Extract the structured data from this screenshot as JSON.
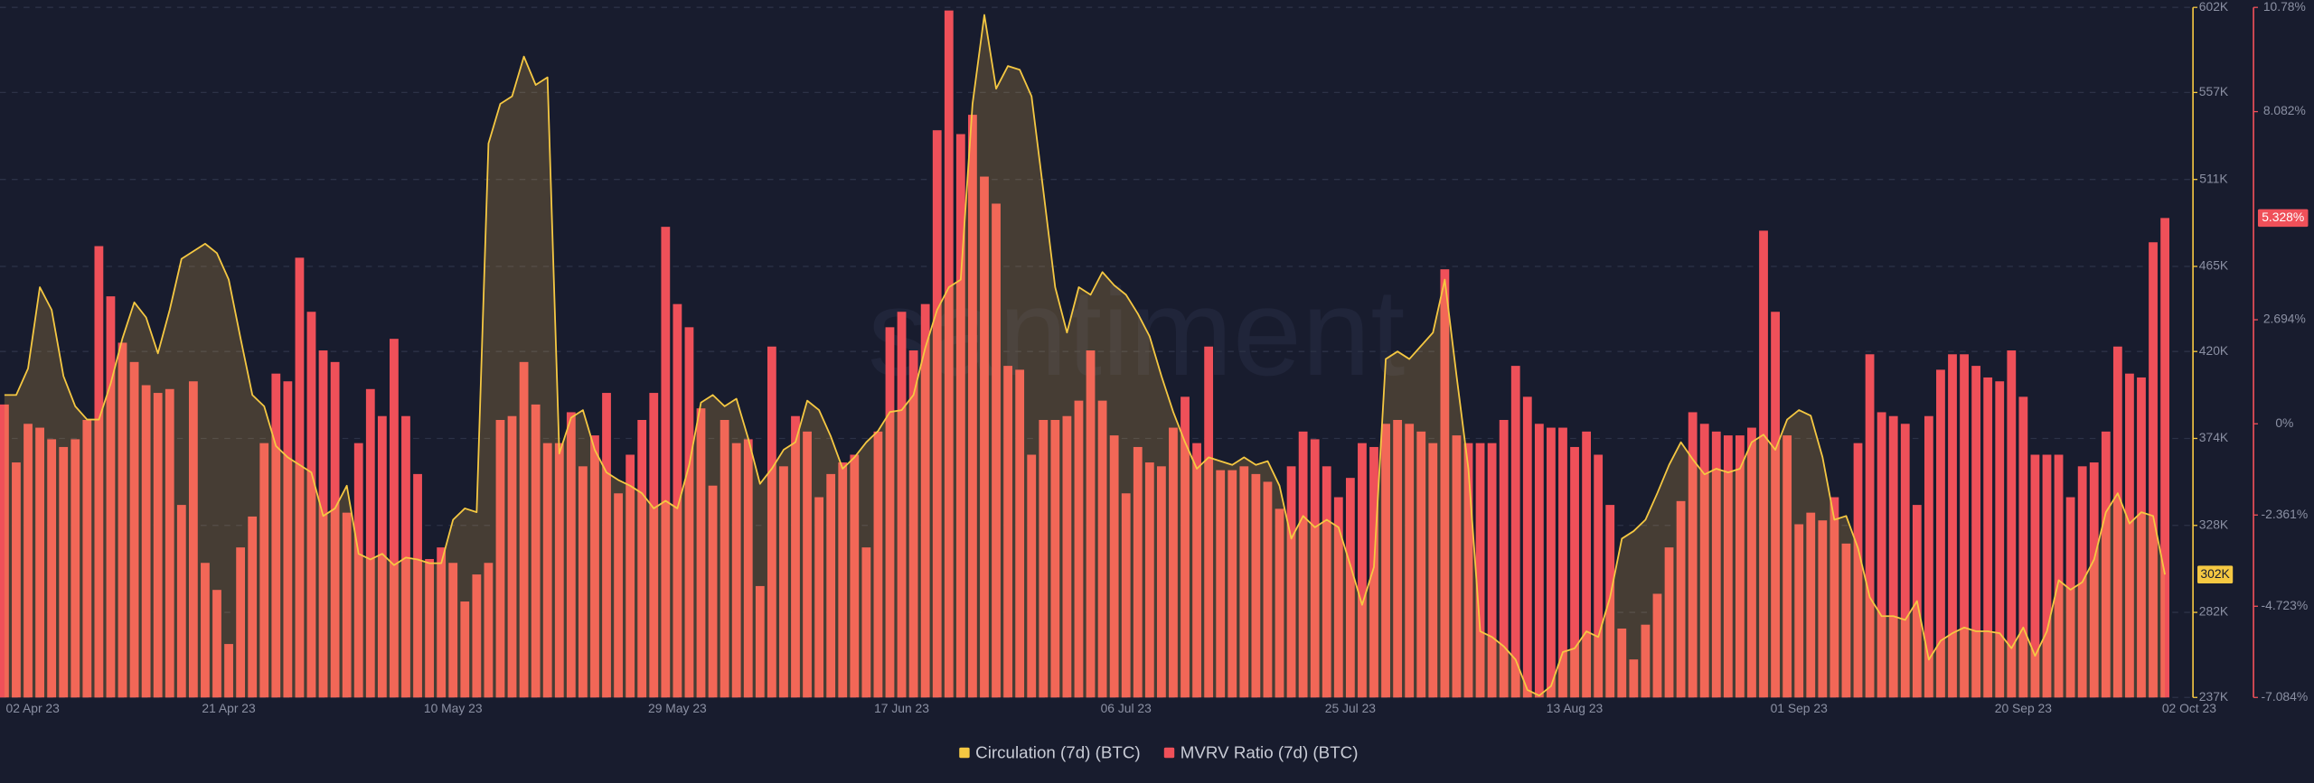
{
  "chart_data": {
    "type": "combo",
    "watermark": "santiment",
    "categories": [
      "02 Apr 23",
      null,
      null,
      null,
      null,
      null,
      null,
      null,
      null,
      null,
      null,
      null,
      null,
      null,
      null,
      null,
      null,
      null,
      null,
      "21 Apr 23",
      null,
      null,
      null,
      null,
      null,
      null,
      null,
      null,
      null,
      null,
      null,
      null,
      null,
      null,
      null,
      null,
      null,
      null,
      "10 May 23",
      null,
      null,
      null,
      null,
      null,
      null,
      null,
      null,
      null,
      null,
      null,
      null,
      null,
      null,
      null,
      null,
      null,
      null,
      "29 May 23",
      null,
      null,
      null,
      null,
      null,
      null,
      null,
      null,
      null,
      null,
      null,
      null,
      null,
      null,
      null,
      null,
      null,
      null,
      "17 Jun 23",
      null,
      null,
      null,
      null,
      null,
      null,
      null,
      null,
      null,
      null,
      null,
      null,
      null,
      null,
      null,
      null,
      null,
      null,
      "06 Jul 23",
      null,
      null,
      null,
      null,
      null,
      null,
      null,
      null,
      null,
      null,
      null,
      null,
      null,
      null,
      null,
      null,
      null,
      null,
      "25 Jul 23",
      null,
      null,
      null,
      null,
      null,
      null,
      null,
      null,
      null,
      null,
      null,
      null,
      null,
      null,
      null,
      null,
      null,
      null,
      "13 Aug 23",
      null,
      null,
      null,
      null,
      null,
      null,
      null,
      null,
      null,
      null,
      null,
      null,
      null,
      null,
      null,
      null,
      null,
      null,
      "01 Sep 23",
      null,
      null,
      null,
      null,
      null,
      null,
      null,
      null,
      null,
      null,
      null,
      null,
      null,
      null,
      null,
      null,
      null,
      null,
      "20 Sep 23",
      null,
      null,
      null,
      null,
      null,
      null,
      null,
      null,
      null,
      null,
      null,
      "02 Oct 23"
    ],
    "ylim": [
      237000,
      602000
    ],
    "yticks": [
      {
        "value": 237000,
        "label": "237K"
      },
      {
        "value": 282000,
        "label": "282K"
      },
      {
        "value": 328000,
        "label": "328K"
      },
      {
        "value": 374000,
        "label": "374K"
      },
      {
        "value": 420000,
        "label": "420K"
      },
      {
        "value": 465000,
        "label": "465K"
      },
      {
        "value": 511000,
        "label": "511K"
      },
      {
        "value": 557000,
        "label": "557K"
      },
      {
        "value": 602000,
        "label": "602K"
      }
    ],
    "y2lim": [
      -7.084,
      10.78
    ],
    "y2ticks": [
      {
        "value": -7.084,
        "label": "-7.084%"
      },
      {
        "value": -4.723,
        "label": "-4.723%"
      },
      {
        "value": -2.361,
        "label": "-2.361%"
      },
      {
        "value": 0,
        "label": "0%"
      },
      {
        "value": 2.694,
        "label": "2.694%"
      },
      {
        "value": 8.082,
        "label": "8.082%"
      },
      {
        "value": 10.78,
        "label": "10.78%"
      }
    ],
    "grid": true,
    "series": [
      {
        "name": "Circulation (7d) (BTC)",
        "color": "#f5c842",
        "type": "area",
        "last_label": "302K",
        "values": [
          397000,
          397000,
          411000,
          454000,
          442000,
          407000,
          391000,
          384000,
          384000,
          403000,
          427000,
          446000,
          438000,
          419000,
          442000,
          469000,
          473000,
          477000,
          472000,
          458000,
          427000,
          397000,
          391000,
          370000,
          364000,
          360000,
          356000,
          333000,
          337000,
          349000,
          313000,
          310000,
          313000,
          307000,
          311000,
          310000,
          308000,
          308000,
          331000,
          337000,
          335000,
          530000,
          551000,
          555000,
          576000,
          561000,
          565000,
          366000,
          385000,
          389000,
          368000,
          356000,
          352000,
          349000,
          345000,
          337000,
          341000,
          337000,
          360000,
          393000,
          397000,
          391000,
          395000,
          374000,
          350000,
          358000,
          368000,
          372000,
          394000,
          389000,
          375000,
          358000,
          364000,
          372000,
          378000,
          388000,
          389000,
          397000,
          422000,
          442000,
          454000,
          458000,
          551000,
          598000,
          559000,
          571000,
          569000,
          555000,
          505000,
          454000,
          430000,
          454000,
          450000,
          462000,
          455000,
          450000,
          440000,
          428000,
          407000,
          388000,
          372000,
          358000,
          364000,
          362000,
          360000,
          364000,
          360000,
          362000,
          349000,
          321000,
          333000,
          327000,
          331000,
          327000,
          307000,
          286000,
          306000,
          416000,
          420000,
          416000,
          423000,
          430000,
          458000,
          407000,
          358000,
          272000,
          269000,
          264000,
          257000,
          241000,
          238000,
          243000,
          261000,
          263000,
          272000,
          269000,
          290000,
          321000,
          325000,
          331000,
          345000,
          360000,
          372000,
          363000,
          355000,
          358000,
          356000,
          358000,
          372000,
          376000,
          368000,
          384000,
          389000,
          386000,
          364000,
          331000,
          333000,
          316000,
          290000,
          280000,
          280000,
          278000,
          288000,
          257000,
          267000,
          271000,
          274000,
          272000,
          272000,
          271000,
          263000,
          274000,
          259000,
          272000,
          299000,
          294000,
          298000,
          310000,
          335000,
          345000,
          329000,
          335000,
          333000,
          302000
        ]
      },
      {
        "name": "MVRV Ratio (7d) (BTC)",
        "color": "#ef5059",
        "type": "bar",
        "axis": "y2",
        "last_label": "5.328%",
        "values": [
          0.5,
          -1.0,
          0.0,
          -0.1,
          -0.4,
          -0.6,
          -0.4,
          0.1,
          4.6,
          3.3,
          2.1,
          1.6,
          1.0,
          0.8,
          0.9,
          -2.1,
          1.1,
          -3.6,
          -4.3,
          -5.7,
          -3.2,
          -2.4,
          -0.5,
          1.3,
          1.1,
          4.3,
          2.9,
          1.9,
          1.6,
          -2.3,
          -0.5,
          0.9,
          0.2,
          2.2,
          0.2,
          -1.3,
          -3.5,
          -3.2,
          -3.6,
          -4.6,
          -3.9,
          -3.6,
          0.1,
          0.2,
          1.6,
          0.5,
          -0.5,
          -0.5,
          0.3,
          -1.1,
          -0.3,
          0.8,
          -1.8,
          -0.8,
          0.1,
          0.8,
          5.1,
          3.1,
          2.5,
          0.4,
          -1.6,
          0.1,
          -0.5,
          -0.4,
          -4.2,
          2.0,
          -1.1,
          0.2,
          -0.2,
          -1.9,
          -1.3,
          -1.0,
          -0.8,
          -3.2,
          -0.2,
          2.5,
          2.9,
          1.9,
          3.1,
          7.6,
          10.7,
          7.5,
          8.0,
          6.4,
          5.7,
          1.5,
          1.4,
          -0.8,
          0.1,
          0.1,
          0.2,
          0.6,
          1.9,
          0.6,
          -0.3,
          -1.8,
          -0.6,
          -1.0,
          -1.1,
          -0.1,
          0.7,
          -0.5,
          2.0,
          -1.2,
          -1.2,
          -1.1,
          -1.3,
          -1.5,
          -2.2,
          -1.1,
          -0.2,
          -0.4,
          -1.1,
          -1.9,
          -1.4,
          -0.5,
          -0.6,
          0.0,
          0.1,
          0.0,
          -0.2,
          -0.5,
          4.0,
          -0.3,
          -0.5,
          -0.5,
          -0.5,
          0.1,
          1.5,
          0.7,
          0.0,
          -0.1,
          -0.1,
          -0.6,
          -0.2,
          -0.8,
          -2.1,
          -5.3,
          -6.1,
          -5.2,
          -4.4,
          -3.2,
          -2.0,
          0.3,
          0.0,
          -0.2,
          -0.3,
          -0.3,
          -0.1,
          5.0,
          2.9,
          -0.3,
          -2.6,
          -2.3,
          -2.5,
          -1.9,
          -3.1,
          -0.5,
          1.8,
          0.3,
          0.2,
          0.0,
          -2.1,
          0.2,
          1.4,
          1.8,
          1.8,
          1.5,
          1.2,
          1.1,
          1.9,
          0.7,
          -0.8,
          -0.8,
          -0.8,
          -1.9,
          -1.1,
          -1.0,
          -0.2,
          2.0,
          1.3,
          1.2,
          4.7,
          5.328
        ]
      }
    ]
  }
}
